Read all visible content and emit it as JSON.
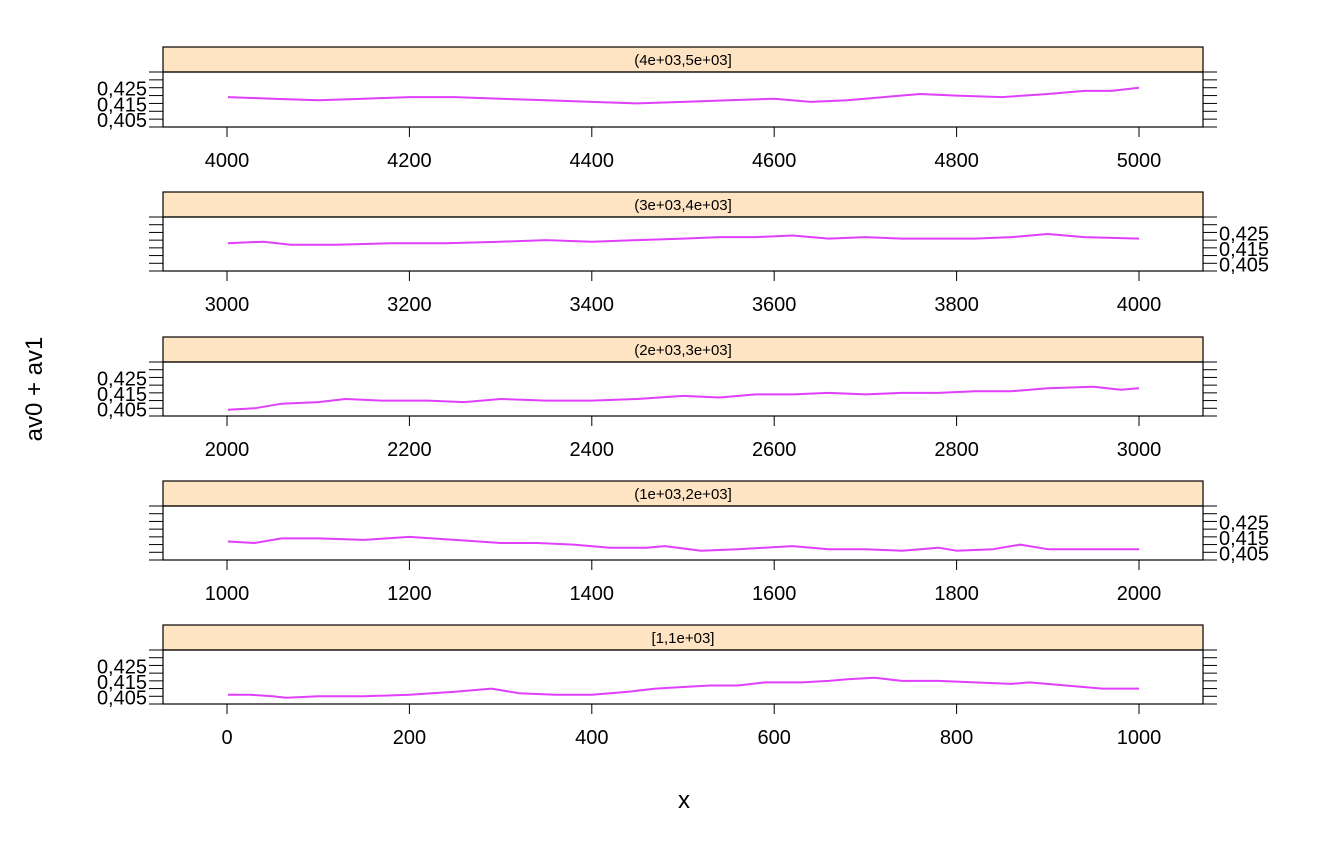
{
  "chart_data": {
    "type": "line",
    "title": "",
    "xlabel": "x",
    "ylabel": "av0 + av1",
    "y_ticks": [
      "0,405",
      "0,415",
      "0,425"
    ],
    "ylim": [
      0.4,
      0.435
    ],
    "colors": {
      "strip_bg": "#ffe4c4",
      "line": "#e040fb",
      "axis": "#000000"
    },
    "panels": [
      {
        "strip_label": "[1,1e+03]",
        "xlim": [
          -65,
          1065
        ],
        "x_ticks": [
          "0",
          "200",
          "400",
          "600",
          "800",
          "1000"
        ],
        "x": [
          1,
          25,
          50,
          65,
          100,
          150,
          200,
          250,
          290,
          320,
          360,
          400,
          440,
          470,
          500,
          530,
          560,
          590,
          630,
          660,
          680,
          710,
          740,
          780,
          820,
          860,
          880,
          920,
          960,
          1000
        ],
        "values": [
          0.406,
          0.406,
          0.405,
          0.404,
          0.405,
          0.405,
          0.406,
          0.408,
          0.41,
          0.407,
          0.406,
          0.406,
          0.408,
          0.41,
          0.411,
          0.412,
          0.412,
          0.414,
          0.414,
          0.415,
          0.416,
          0.417,
          0.415,
          0.415,
          0.414,
          0.413,
          0.414,
          0.412,
          0.41,
          0.41
        ]
      },
      {
        "strip_label": "(1e+03,2e+03]",
        "xlim": [
          935,
          2065
        ],
        "x_ticks": [
          "1000",
          "1200",
          "1400",
          "1600",
          "1800",
          "2000"
        ],
        "x": [
          1001,
          1030,
          1060,
          1100,
          1150,
          1200,
          1250,
          1300,
          1340,
          1380,
          1420,
          1460,
          1480,
          1520,
          1560,
          1620,
          1660,
          1700,
          1740,
          1780,
          1800,
          1840,
          1870,
          1900,
          1940,
          2000
        ],
        "values": [
          0.412,
          0.411,
          0.414,
          0.414,
          0.413,
          0.415,
          0.413,
          0.411,
          0.411,
          0.41,
          0.408,
          0.408,
          0.409,
          0.406,
          0.407,
          0.409,
          0.407,
          0.407,
          0.406,
          0.408,
          0.406,
          0.407,
          0.41,
          0.407,
          0.407,
          0.407
        ]
      },
      {
        "strip_label": "(2e+03,3e+03]",
        "xlim": [
          1935,
          3065
        ],
        "x_ticks": [
          "2000",
          "2200",
          "2400",
          "2600",
          "2800",
          "3000"
        ],
        "x": [
          2001,
          2030,
          2060,
          2100,
          2130,
          2170,
          2220,
          2260,
          2300,
          2350,
          2400,
          2450,
          2500,
          2540,
          2580,
          2620,
          2660,
          2700,
          2740,
          2780,
          2820,
          2860,
          2900,
          2950,
          2980,
          3000
        ],
        "values": [
          0.404,
          0.405,
          0.408,
          0.409,
          0.411,
          0.41,
          0.41,
          0.409,
          0.411,
          0.41,
          0.41,
          0.411,
          0.413,
          0.412,
          0.414,
          0.414,
          0.415,
          0.414,
          0.415,
          0.415,
          0.416,
          0.416,
          0.418,
          0.419,
          0.417,
          0.418
        ]
      },
      {
        "strip_label": "(3e+03,4e+03]",
        "xlim": [
          2935,
          3065,
          4065
        ],
        "x_ticks": [
          "3000",
          "3200",
          "3400",
          "3600",
          "3800",
          "4000"
        ],
        "x": [
          3001,
          3040,
          3070,
          3120,
          3180,
          3240,
          3300,
          3350,
          3400,
          3450,
          3500,
          3540,
          3580,
          3620,
          3660,
          3700,
          3740,
          3780,
          3820,
          3860,
          3900,
          3940,
          4000
        ],
        "values": [
          0.418,
          0.419,
          0.417,
          0.417,
          0.418,
          0.418,
          0.419,
          0.42,
          0.419,
          0.42,
          0.421,
          0.422,
          0.422,
          0.423,
          0.421,
          0.422,
          0.421,
          0.421,
          0.421,
          0.422,
          0.424,
          0.422,
          0.421
        ]
      },
      {
        "strip_label": "(4e+03,5e+03]",
        "xlim": [
          3935,
          5065
        ],
        "x_ticks": [
          "4000",
          "4200",
          "4400",
          "4600",
          "4800",
          "5000"
        ],
        "x": [
          4001,
          4050,
          4100,
          4150,
          4200,
          4250,
          4300,
          4350,
          4400,
          4450,
          4500,
          4550,
          4600,
          4640,
          4680,
          4720,
          4760,
          4800,
          4850,
          4900,
          4940,
          4970,
          5000
        ],
        "values": [
          0.419,
          0.418,
          0.417,
          0.418,
          0.419,
          0.419,
          0.418,
          0.417,
          0.416,
          0.415,
          0.416,
          0.417,
          0.418,
          0.416,
          0.417,
          0.419,
          0.421,
          0.42,
          0.419,
          0.421,
          0.423,
          0.423,
          0.425
        ]
      }
    ]
  }
}
